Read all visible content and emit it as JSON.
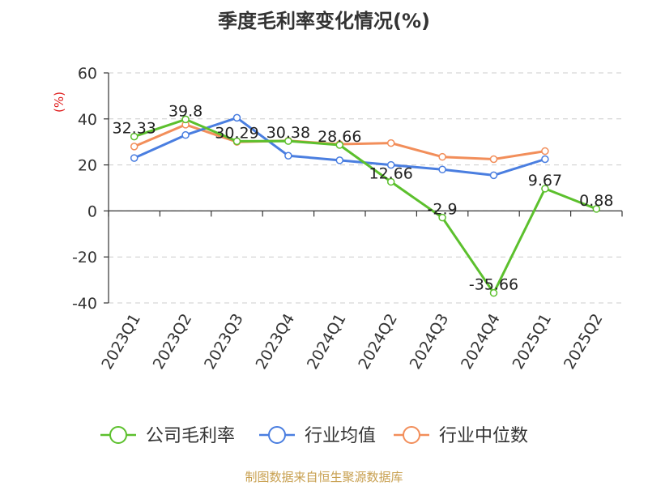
{
  "chart_data": {
    "type": "line",
    "title": "季度毛利率变化情况(%)",
    "ylabel": "(%)",
    "xlabel": "",
    "ylim": [
      -40,
      60
    ],
    "yticks": [
      60,
      40,
      20,
      0,
      -20,
      -40
    ],
    "categories": [
      "2023Q1",
      "2023Q2",
      "2023Q3",
      "2023Q4",
      "2024Q1",
      "2024Q2",
      "2024Q3",
      "2024Q4",
      "2025Q1",
      "2025Q2"
    ],
    "series": [
      {
        "name": "公司毛利率",
        "color": "#5cc02d",
        "values": [
          32.33,
          39.8,
          30.29,
          30.38,
          28.66,
          12.66,
          -2.9,
          -35.66,
          9.67,
          0.88
        ],
        "labels": [
          "32.33",
          "39.8",
          "30.29",
          "30.38",
          "28.66",
          "12.66",
          "-2.9",
          "-35.66",
          "9.67",
          "0.88"
        ]
      },
      {
        "name": "行业均值",
        "color": "#4a7ee0",
        "values": [
          23,
          33,
          40.5,
          24,
          22,
          20,
          18,
          15.5,
          22.5,
          null
        ]
      },
      {
        "name": "行业中位数",
        "color": "#f28e5a",
        "values": [
          28,
          37.5,
          30,
          30.5,
          29,
          29.5,
          23.5,
          22.5,
          26,
          null
        ]
      }
    ],
    "grid": true,
    "legend_position": "bottom",
    "source": "制图数据来自恒生聚源数据库"
  },
  "colors": {
    "title": "#333333",
    "axis_text": "#333333",
    "ylabel": "#e02020",
    "grid": "#cccccc",
    "source": "#c8a050"
  }
}
